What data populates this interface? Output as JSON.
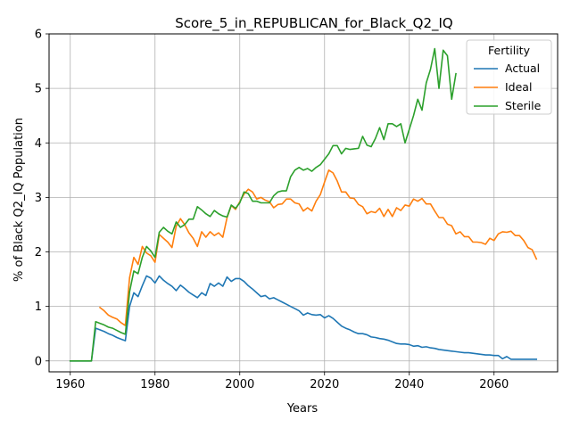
{
  "chart_data": {
    "type": "line",
    "title": "Score_5_in_REPUBLICAN_for_Black_Q2_IQ",
    "xlabel": "Years",
    "ylabel": "% of Black Q2_IQ Population",
    "xlim": [
      1955,
      2075
    ],
    "ylim": [
      -0.2,
      6
    ],
    "xticks": [
      1960,
      1980,
      2000,
      2020,
      2040,
      2060
    ],
    "yticks": [
      0,
      1,
      2,
      3,
      4,
      5,
      6
    ],
    "grid": true,
    "legend": {
      "title": "Fertility",
      "placement": "top-right"
    },
    "series": [
      {
        "name": "Actual",
        "color": "#1f77b4",
        "points": [
          [
            1960,
            0
          ],
          [
            1965,
            0
          ],
          [
            1966,
            0.6
          ],
          [
            1967,
            0.57
          ],
          [
            1968,
            0.54
          ],
          [
            1969,
            0.5
          ],
          [
            1970,
            0.47
          ],
          [
            1971,
            0.43
          ],
          [
            1972,
            0.4
          ],
          [
            1973,
            0.37
          ],
          [
            1974,
            1.0
          ],
          [
            1975,
            1.25
          ],
          [
            1976,
            1.18
          ],
          [
            1977,
            1.38
          ],
          [
            1978,
            1.56
          ],
          [
            1979,
            1.52
          ],
          [
            1980,
            1.43
          ],
          [
            1981,
            1.56
          ],
          [
            1982,
            1.48
          ],
          [
            1983,
            1.42
          ],
          [
            1984,
            1.37
          ],
          [
            1985,
            1.29
          ],
          [
            1986,
            1.39
          ],
          [
            1987,
            1.33
          ],
          [
            1988,
            1.26
          ],
          [
            1989,
            1.21
          ],
          [
            1990,
            1.16
          ],
          [
            1991,
            1.25
          ],
          [
            1992,
            1.2
          ],
          [
            1993,
            1.42
          ],
          [
            1994,
            1.37
          ],
          [
            1995,
            1.43
          ],
          [
            1996,
            1.37
          ],
          [
            1997,
            1.54
          ],
          [
            1998,
            1.46
          ],
          [
            1999,
            1.51
          ],
          [
            2000,
            1.51
          ],
          [
            2001,
            1.46
          ],
          [
            2002,
            1.38
          ],
          [
            2003,
            1.32
          ],
          [
            2004,
            1.25
          ],
          [
            2005,
            1.18
          ],
          [
            2006,
            1.2
          ],
          [
            2007,
            1.14
          ],
          [
            2008,
            1.16
          ],
          [
            2009,
            1.12
          ],
          [
            2010,
            1.08
          ],
          [
            2011,
            1.04
          ],
          [
            2012,
            1.0
          ],
          [
            2013,
            0.96
          ],
          [
            2014,
            0.92
          ],
          [
            2015,
            0.84
          ],
          [
            2016,
            0.88
          ],
          [
            2017,
            0.85
          ],
          [
            2018,
            0.84
          ],
          [
            2019,
            0.85
          ],
          [
            2020,
            0.79
          ],
          [
            2021,
            0.83
          ],
          [
            2022,
            0.78
          ],
          [
            2023,
            0.71
          ],
          [
            2024,
            0.64
          ],
          [
            2025,
            0.6
          ],
          [
            2026,
            0.57
          ],
          [
            2027,
            0.53
          ],
          [
            2028,
            0.5
          ],
          [
            2029,
            0.5
          ],
          [
            2030,
            0.48
          ],
          [
            2031,
            0.44
          ],
          [
            2032,
            0.43
          ],
          [
            2033,
            0.41
          ],
          [
            2034,
            0.4
          ],
          [
            2035,
            0.38
          ],
          [
            2036,
            0.35
          ],
          [
            2037,
            0.32
          ],
          [
            2038,
            0.31
          ],
          [
            2039,
            0.31
          ],
          [
            2040,
            0.3
          ],
          [
            2041,
            0.27
          ],
          [
            2042,
            0.28
          ],
          [
            2043,
            0.25
          ],
          [
            2044,
            0.26
          ],
          [
            2045,
            0.24
          ],
          [
            2046,
            0.23
          ],
          [
            2047,
            0.21
          ],
          [
            2048,
            0.2
          ],
          [
            2049,
            0.19
          ],
          [
            2050,
            0.18
          ],
          [
            2051,
            0.17
          ],
          [
            2052,
            0.16
          ],
          [
            2053,
            0.15
          ],
          [
            2054,
            0.15
          ],
          [
            2055,
            0.14
          ],
          [
            2056,
            0.13
          ],
          [
            2057,
            0.12
          ],
          [
            2058,
            0.11
          ],
          [
            2059,
            0.11
          ],
          [
            2060,
            0.1
          ],
          [
            2061,
            0.1
          ],
          [
            2062,
            0.04
          ],
          [
            2063,
            0.08
          ],
          [
            2064,
            0.03
          ],
          [
            2065,
            0.03
          ],
          [
            2066,
            0.03
          ],
          [
            2067,
            0.03
          ],
          [
            2068,
            0.03
          ],
          [
            2069,
            0.03
          ],
          [
            2070,
            0.03
          ]
        ]
      },
      {
        "name": "Ideal",
        "color": "#ff7f0e",
        "points": [
          [
            1967,
            0.98
          ],
          [
            1968,
            0.92
          ],
          [
            1969,
            0.84
          ],
          [
            1970,
            0.8
          ],
          [
            1971,
            0.77
          ],
          [
            1972,
            0.7
          ],
          [
            1973,
            0.65
          ],
          [
            1974,
            1.53
          ],
          [
            1975,
            1.9
          ],
          [
            1976,
            1.77
          ],
          [
            1977,
            2.1
          ],
          [
            1978,
            1.98
          ],
          [
            1979,
            1.93
          ],
          [
            1980,
            1.81
          ],
          [
            1981,
            2.32
          ],
          [
            1982,
            2.25
          ],
          [
            1983,
            2.18
          ],
          [
            1984,
            2.08
          ],
          [
            1985,
            2.47
          ],
          [
            1986,
            2.61
          ],
          [
            1987,
            2.5
          ],
          [
            1988,
            2.35
          ],
          [
            1989,
            2.25
          ],
          [
            1990,
            2.1
          ],
          [
            1991,
            2.37
          ],
          [
            1992,
            2.27
          ],
          [
            1993,
            2.37
          ],
          [
            1994,
            2.3
          ],
          [
            1995,
            2.35
          ],
          [
            1996,
            2.27
          ],
          [
            1997,
            2.63
          ],
          [
            1998,
            2.85
          ],
          [
            1999,
            2.78
          ],
          [
            2000,
            2.92
          ],
          [
            2001,
            3.06
          ],
          [
            2002,
            3.15
          ],
          [
            2003,
            3.1
          ],
          [
            2004,
            2.97
          ],
          [
            2005,
            3.0
          ],
          [
            2006,
            2.95
          ],
          [
            2007,
            2.92
          ],
          [
            2008,
            2.81
          ],
          [
            2009,
            2.87
          ],
          [
            2010,
            2.88
          ],
          [
            2011,
            2.97
          ],
          [
            2012,
            2.97
          ],
          [
            2013,
            2.9
          ],
          [
            2014,
            2.88
          ],
          [
            2015,
            2.75
          ],
          [
            2016,
            2.81
          ],
          [
            2017,
            2.75
          ],
          [
            2018,
            2.93
          ],
          [
            2019,
            3.05
          ],
          [
            2020,
            3.28
          ],
          [
            2021,
            3.5
          ],
          [
            2022,
            3.45
          ],
          [
            2023,
            3.3
          ],
          [
            2024,
            3.1
          ],
          [
            2025,
            3.1
          ],
          [
            2026,
            2.99
          ],
          [
            2027,
            2.98
          ],
          [
            2028,
            2.87
          ],
          [
            2029,
            2.83
          ],
          [
            2030,
            2.7
          ],
          [
            2031,
            2.74
          ],
          [
            2032,
            2.72
          ],
          [
            2033,
            2.8
          ],
          [
            2034,
            2.65
          ],
          [
            2035,
            2.78
          ],
          [
            2036,
            2.65
          ],
          [
            2037,
            2.81
          ],
          [
            2038,
            2.76
          ],
          [
            2039,
            2.86
          ],
          [
            2040,
            2.84
          ],
          [
            2041,
            2.97
          ],
          [
            2042,
            2.93
          ],
          [
            2043,
            2.98
          ],
          [
            2044,
            2.88
          ],
          [
            2045,
            2.88
          ],
          [
            2046,
            2.75
          ],
          [
            2047,
            2.63
          ],
          [
            2048,
            2.63
          ],
          [
            2049,
            2.51
          ],
          [
            2050,
            2.48
          ],
          [
            2051,
            2.33
          ],
          [
            2052,
            2.37
          ],
          [
            2053,
            2.28
          ],
          [
            2054,
            2.28
          ],
          [
            2055,
            2.18
          ],
          [
            2056,
            2.18
          ],
          [
            2057,
            2.17
          ],
          [
            2058,
            2.14
          ],
          [
            2059,
            2.25
          ],
          [
            2060,
            2.21
          ],
          [
            2061,
            2.33
          ],
          [
            2062,
            2.37
          ],
          [
            2063,
            2.36
          ],
          [
            2064,
            2.38
          ],
          [
            2065,
            2.3
          ],
          [
            2066,
            2.3
          ],
          [
            2067,
            2.21
          ],
          [
            2068,
            2.08
          ],
          [
            2069,
            2.04
          ],
          [
            2070,
            1.87
          ]
        ]
      },
      {
        "name": "Sterile",
        "color": "#2ca02c",
        "points": [
          [
            1960,
            0
          ],
          [
            1965,
            0
          ],
          [
            1966,
            0.72
          ],
          [
            1967,
            0.69
          ],
          [
            1968,
            0.66
          ],
          [
            1969,
            0.62
          ],
          [
            1970,
            0.6
          ],
          [
            1971,
            0.56
          ],
          [
            1972,
            0.52
          ],
          [
            1973,
            0.49
          ],
          [
            1974,
            1.27
          ],
          [
            1975,
            1.65
          ],
          [
            1976,
            1.6
          ],
          [
            1977,
            1.9
          ],
          [
            1978,
            2.1
          ],
          [
            1979,
            2.02
          ],
          [
            1980,
            1.9
          ],
          [
            1981,
            2.36
          ],
          [
            1982,
            2.45
          ],
          [
            1983,
            2.38
          ],
          [
            1984,
            2.33
          ],
          [
            1985,
            2.55
          ],
          [
            1986,
            2.45
          ],
          [
            1987,
            2.5
          ],
          [
            1988,
            2.6
          ],
          [
            1989,
            2.6
          ],
          [
            1990,
            2.83
          ],
          [
            1991,
            2.77
          ],
          [
            1992,
            2.7
          ],
          [
            1993,
            2.65
          ],
          [
            1994,
            2.76
          ],
          [
            1995,
            2.7
          ],
          [
            1996,
            2.66
          ],
          [
            1997,
            2.64
          ],
          [
            1998,
            2.86
          ],
          [
            1999,
            2.8
          ],
          [
            2000,
            2.9
          ],
          [
            2001,
            3.1
          ],
          [
            2002,
            3.07
          ],
          [
            2003,
            2.93
          ],
          [
            2004,
            2.93
          ],
          [
            2005,
            2.9
          ],
          [
            2006,
            2.9
          ],
          [
            2007,
            2.9
          ],
          [
            2008,
            3.03
          ],
          [
            2009,
            3.1
          ],
          [
            2010,
            3.12
          ],
          [
            2011,
            3.12
          ],
          [
            2012,
            3.38
          ],
          [
            2013,
            3.5
          ],
          [
            2014,
            3.55
          ],
          [
            2015,
            3.5
          ],
          [
            2016,
            3.53
          ],
          [
            2017,
            3.48
          ],
          [
            2018,
            3.55
          ],
          [
            2019,
            3.6
          ],
          [
            2020,
            3.7
          ],
          [
            2021,
            3.8
          ],
          [
            2022,
            3.95
          ],
          [
            2023,
            3.95
          ],
          [
            2024,
            3.8
          ],
          [
            2025,
            3.9
          ],
          [
            2026,
            3.88
          ],
          [
            2027,
            3.89
          ],
          [
            2028,
            3.9
          ],
          [
            2029,
            4.12
          ],
          [
            2030,
            3.96
          ],
          [
            2031,
            3.93
          ],
          [
            2032,
            4.08
          ],
          [
            2033,
            4.28
          ],
          [
            2034,
            4.06
          ],
          [
            2035,
            4.35
          ],
          [
            2036,
            4.35
          ],
          [
            2037,
            4.3
          ],
          [
            2038,
            4.35
          ],
          [
            2039,
            4.0
          ],
          [
            2040,
            4.25
          ],
          [
            2041,
            4.5
          ],
          [
            2042,
            4.8
          ],
          [
            2043,
            4.6
          ],
          [
            2044,
            5.1
          ],
          [
            2045,
            5.35
          ],
          [
            2046,
            5.73
          ],
          [
            2047,
            5.0
          ],
          [
            2048,
            5.7
          ],
          [
            2049,
            5.6
          ],
          [
            2050,
            4.8
          ],
          [
            2051,
            5.27
          ]
        ]
      }
    ]
  }
}
